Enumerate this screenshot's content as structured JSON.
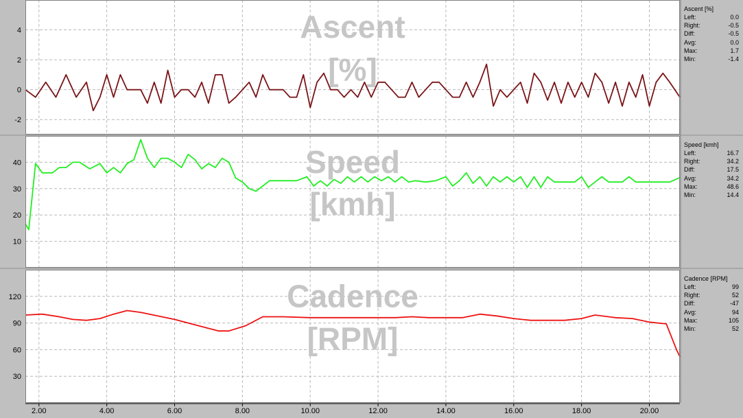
{
  "chart_data": [
    {
      "type": "line",
      "title": "Ascent\n[%]",
      "title_lines": [
        "Ascent",
        "[%]"
      ],
      "color": "#7a1418",
      "ylim": [
        -3,
        6
      ],
      "yticks": [
        -2,
        0,
        2,
        4
      ],
      "xlim": [
        1.6,
        20.9
      ],
      "x": [
        1.6,
        1.9,
        2.2,
        2.5,
        2.8,
        3.1,
        3.4,
        3.6,
        3.8,
        4.0,
        4.2,
        4.4,
        4.6,
        4.8,
        5.0,
        5.2,
        5.4,
        5.6,
        5.8,
        6.0,
        6.2,
        6.4,
        6.6,
        6.8,
        7.0,
        7.2,
        7.4,
        7.6,
        7.8,
        8.0,
        8.2,
        8.4,
        8.6,
        8.8,
        9.0,
        9.2,
        9.4,
        9.6,
        9.8,
        10.0,
        10.2,
        10.4,
        10.6,
        10.8,
        11.0,
        11.2,
        11.4,
        11.6,
        11.8,
        12.0,
        12.2,
        12.4,
        12.6,
        12.8,
        13.0,
        13.2,
        13.4,
        13.6,
        13.8,
        14.0,
        14.2,
        14.4,
        14.6,
        14.8,
        15.0,
        15.2,
        15.4,
        15.6,
        15.8,
        16.0,
        16.2,
        16.4,
        16.6,
        16.8,
        17.0,
        17.2,
        17.4,
        17.6,
        17.8,
        18.0,
        18.2,
        18.4,
        18.6,
        18.8,
        19.0,
        19.2,
        19.4,
        19.6,
        19.8,
        20.0,
        20.2,
        20.4,
        20.6,
        20.9
      ],
      "y": [
        0.0,
        -0.5,
        0.5,
        -0.5,
        1.0,
        -0.5,
        0.5,
        -1.4,
        -0.5,
        1.0,
        -0.5,
        1.0,
        0.0,
        0.0,
        0.0,
        -0.9,
        0.5,
        -0.9,
        1.3,
        -0.5,
        0.0,
        0.0,
        -0.5,
        0.5,
        -0.9,
        1.0,
        1.0,
        -0.9,
        -0.5,
        0.0,
        0.5,
        -0.5,
        1.0,
        0.0,
        0.0,
        0.0,
        -0.5,
        -0.5,
        1.0,
        -1.2,
        0.5,
        1.1,
        0.0,
        0.0,
        -0.5,
        0.0,
        -0.5,
        0.5,
        -0.5,
        0.5,
        0.5,
        0.0,
        -0.5,
        -0.5,
        0.5,
        -0.5,
        0.0,
        0.5,
        0.5,
        0.0,
        -0.5,
        -0.5,
        0.5,
        -0.5,
        0.5,
        1.7,
        -1.1,
        0.0,
        -0.5,
        0.0,
        0.5,
        -0.9,
        1.1,
        0.5,
        -0.7,
        0.5,
        -0.9,
        0.5,
        -0.5,
        0.5,
        -0.5,
        1.1,
        0.5,
        -0.9,
        0.5,
        -1.1,
        0.5,
        -0.5,
        1.0,
        -1.1,
        0.5,
        1.1,
        0.5,
        -0.5
      ],
      "stats": {
        "title": "Ascent [%]",
        "rows": [
          {
            "label": "Left:",
            "value": "0.0"
          },
          {
            "label": "Right:",
            "value": "-0.5"
          },
          {
            "label": "Diff:",
            "value": "-0.5"
          },
          {
            "label": "Avg:",
            "value": "0.0"
          },
          {
            "label": "Max:",
            "value": "1.7"
          },
          {
            "label": "Min:",
            "value": "-1.4"
          }
        ]
      }
    },
    {
      "type": "line",
      "title": "Speed\n[kmh]",
      "title_lines": [
        "Speed",
        "[kmh]"
      ],
      "color": "#22ee22",
      "ylim": [
        0,
        50
      ],
      "yticks": [
        10,
        20,
        30,
        40
      ],
      "xlim": [
        1.6,
        20.9
      ],
      "x": [
        1.6,
        1.7,
        1.9,
        2.1,
        2.4,
        2.6,
        2.8,
        3.0,
        3.2,
        3.5,
        3.8,
        4.0,
        4.2,
        4.4,
        4.6,
        4.8,
        5.0,
        5.2,
        5.4,
        5.6,
        5.8,
        6.0,
        6.2,
        6.4,
        6.6,
        6.8,
        7.0,
        7.2,
        7.4,
        7.6,
        7.8,
        8.0,
        8.2,
        8.4,
        8.6,
        8.8,
        9.0,
        9.2,
        9.6,
        9.9,
        10.1,
        10.3,
        10.5,
        10.7,
        10.9,
        11.1,
        11.3,
        11.5,
        11.7,
        11.9,
        12.1,
        12.3,
        12.5,
        12.7,
        12.9,
        13.1,
        13.4,
        13.7,
        14.0,
        14.2,
        14.4,
        14.6,
        14.8,
        15.0,
        15.2,
        15.4,
        15.6,
        15.8,
        16.0,
        16.2,
        16.4,
        16.6,
        16.8,
        17.0,
        17.2,
        17.4,
        17.6,
        17.8,
        18.0,
        18.2,
        18.4,
        18.6,
        18.8,
        19.0,
        19.2,
        19.4,
        19.6,
        19.8,
        20.0,
        20.3,
        20.6,
        20.9
      ],
      "y": [
        16.7,
        14.4,
        39.5,
        36.0,
        36.0,
        38.0,
        38.0,
        40.0,
        40.0,
        37.5,
        39.5,
        36.0,
        38.0,
        36.0,
        39.5,
        41.0,
        48.6,
        41.5,
        38.0,
        41.5,
        41.5,
        40.0,
        38.0,
        43.0,
        41.0,
        37.5,
        39.5,
        38.0,
        41.5,
        40.0,
        34.0,
        32.5,
        30.0,
        29.0,
        31.0,
        33.0,
        33.0,
        33.0,
        33.0,
        34.5,
        31.0,
        33.0,
        31.0,
        33.5,
        32.0,
        34.5,
        32.5,
        34.5,
        32.5,
        34.5,
        33.0,
        34.5,
        32.5,
        34.5,
        32.5,
        33.0,
        32.5,
        33.0,
        34.5,
        31.0,
        33.0,
        36.0,
        32.0,
        34.5,
        31.0,
        34.5,
        32.5,
        34.5,
        32.5,
        34.5,
        30.5,
        34.5,
        30.5,
        34.5,
        32.5,
        32.5,
        32.5,
        32.5,
        34.5,
        30.5,
        32.5,
        34.5,
        32.5,
        32.5,
        32.5,
        34.5,
        32.5,
        32.5,
        32.5,
        32.5,
        32.5,
        34.2
      ],
      "stats": {
        "title": "Speed [kmh]",
        "rows": [
          {
            "label": "Left:",
            "value": "16.7"
          },
          {
            "label": "Right:",
            "value": "34.2"
          },
          {
            "label": "Diff:",
            "value": "17.5"
          },
          {
            "label": "Avg:",
            "value": "34.2"
          },
          {
            "label": "Max:",
            "value": "48.6"
          },
          {
            "label": "Min:",
            "value": "14.4"
          }
        ]
      }
    },
    {
      "type": "line",
      "title": "Cadence\n[RPM]",
      "title_lines": [
        "Cadence",
        "[RPM]"
      ],
      "color": "#ee1111",
      "ylim": [
        0,
        150
      ],
      "yticks": [
        30,
        60,
        90,
        120
      ],
      "xlim": [
        1.6,
        20.9
      ],
      "x": [
        1.6,
        2.1,
        2.6,
        3.0,
        3.4,
        3.8,
        4.2,
        4.6,
        5.0,
        5.5,
        6.0,
        6.5,
        7.0,
        7.3,
        7.6,
        8.1,
        8.6,
        9.2,
        10.0,
        10.5,
        11.0,
        11.5,
        12.0,
        12.5,
        13.0,
        13.5,
        14.0,
        14.5,
        15.0,
        15.5,
        16.0,
        16.5,
        17.0,
        17.5,
        18.0,
        18.4,
        19.0,
        19.5,
        20.0,
        20.5,
        20.8,
        20.9
      ],
      "y": [
        99,
        100,
        97,
        94,
        93,
        95,
        100,
        104,
        102,
        98,
        94,
        89,
        84,
        81,
        81,
        87,
        97,
        97,
        96,
        96,
        96,
        96,
        96,
        96,
        97,
        96,
        96,
        96,
        100,
        98,
        95,
        93,
        93,
        93,
        95,
        99,
        96,
        95,
        91,
        89,
        60,
        52
      ],
      "stats": {
        "title": "Cadence [RPM]",
        "rows": [
          {
            "label": "Left:",
            "value": "99"
          },
          {
            "label": "Right:",
            "value": "52"
          },
          {
            "label": "Diff:",
            "value": "-47"
          },
          {
            "label": "Avg:",
            "value": "94"
          },
          {
            "label": "Max:",
            "value": "105"
          },
          {
            "label": "Min:",
            "value": "52"
          }
        ]
      }
    }
  ],
  "x_axis": {
    "ticks": [
      2,
      4,
      6,
      8,
      10,
      12,
      14,
      16,
      18,
      20
    ],
    "tick_labels": [
      "2.00",
      "4.00",
      "6.00",
      "8.00",
      "10.00",
      "12.00",
      "14.00",
      "16.00",
      "18.00",
      "20.00"
    ],
    "xlim": [
      1.6,
      20.9
    ],
    "grid": true
  },
  "colors": {
    "background": "#c0c0c0",
    "plot": "#ffffff",
    "grid": "#b8b8b8",
    "title": "#c6c6c6"
  }
}
